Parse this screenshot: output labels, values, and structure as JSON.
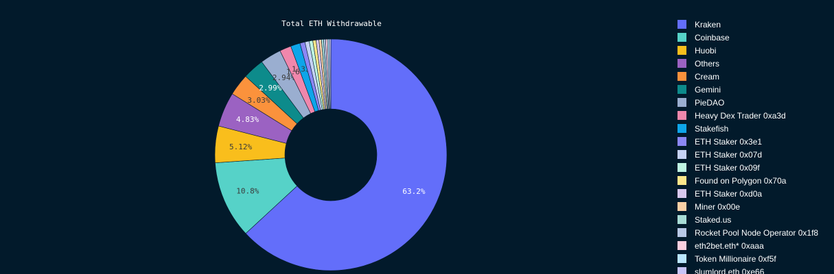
{
  "chart_data": {
    "type": "pie",
    "hole": true,
    "title": "Total ETH Withdrawable",
    "legend_position": "right",
    "slices": [
      {
        "label": "Kraken",
        "value": 63.2,
        "text": "63.2%",
        "color": "#636efa",
        "text_color": "#ffffff"
      },
      {
        "label": "Coinbase",
        "value": 10.8,
        "text": "10.8%",
        "color": "#56d2c8",
        "text_color": "#3a3a3a"
      },
      {
        "label": "Huobi",
        "value": 5.12,
        "text": "5.12%",
        "color": "#f9be1c",
        "text_color": "#3a3a3a"
      },
      {
        "label": "Others",
        "value": 4.83,
        "text": "4.83%",
        "color": "#9b62c2",
        "text_color": "#ffffff"
      },
      {
        "label": "Cream",
        "value": 3.03,
        "text": "3.03%",
        "color": "#fb923c",
        "text_color": "#3a3a3a"
      },
      {
        "label": "Gemini",
        "value": 2.99,
        "text": "2.99%",
        "color": "#0d8b8b",
        "text_color": "#ffffff"
      },
      {
        "label": "PieDAO",
        "value": 2.94,
        "text": "2.94%",
        "color": "#9aaed0",
        "text_color": "#3a3a3a"
      },
      {
        "label": "Heavy Dex Trader 0xa3d",
        "value": 1.6,
        "text": "1.6%",
        "color": "#f087ac",
        "text_color": "#3a3a3a"
      },
      {
        "label": "Stakefish",
        "value": 1.33,
        "text": "1.33%",
        "color": "#0ea5e9",
        "text_color": "#3a3a3a"
      },
      {
        "label": "ETH Staker 0x3e1",
        "value": 0.7,
        "text": "",
        "color": "#8b87f5",
        "text_color": "#3a3a3a"
      },
      {
        "label": "ETH Staker 0x07d",
        "value": 0.6,
        "text": "",
        "color": "#c5d2f5",
        "text_color": "#3a3a3a"
      },
      {
        "label": "ETH Staker 0x09f",
        "value": 0.5,
        "text": "",
        "color": "#bff5e2",
        "text_color": "#3a3a3a"
      },
      {
        "label": "Found on Polygon 0x70a",
        "value": 0.45,
        "text": "",
        "color": "#fde68a",
        "text_color": "#3a3a3a"
      },
      {
        "label": "ETH Staker 0xd0a",
        "value": 0.4,
        "text": "",
        "color": "#d8c8ee",
        "text_color": "#3a3a3a"
      },
      {
        "label": "Miner 0x00e",
        "value": 0.35,
        "text": "",
        "color": "#fbd0a6",
        "text_color": "#3a3a3a"
      },
      {
        "label": "Staked.us",
        "value": 0.3,
        "text": "",
        "color": "#a8dcd6",
        "text_color": "#3a3a3a"
      },
      {
        "label": "Rocket Pool Node Operator 0x1f8",
        "value": 0.28,
        "text": "",
        "color": "#b8c8e6",
        "text_color": "#3a3a3a"
      },
      {
        "label": "eth2bet.eth* 0xaaa",
        "value": 0.26,
        "text": "",
        "color": "#fbcfe0",
        "text_color": "#3a3a3a"
      },
      {
        "label": "Token Millionaire 0xf5f",
        "value": 0.24,
        "text": "",
        "color": "#bae6fd",
        "text_color": "#3a3a3a"
      },
      {
        "label": "slumlord.eth 0xe66",
        "value": 0.22,
        "text": "",
        "color": "#c7c4f7",
        "text_color": "#3a3a3a"
      }
    ]
  }
}
